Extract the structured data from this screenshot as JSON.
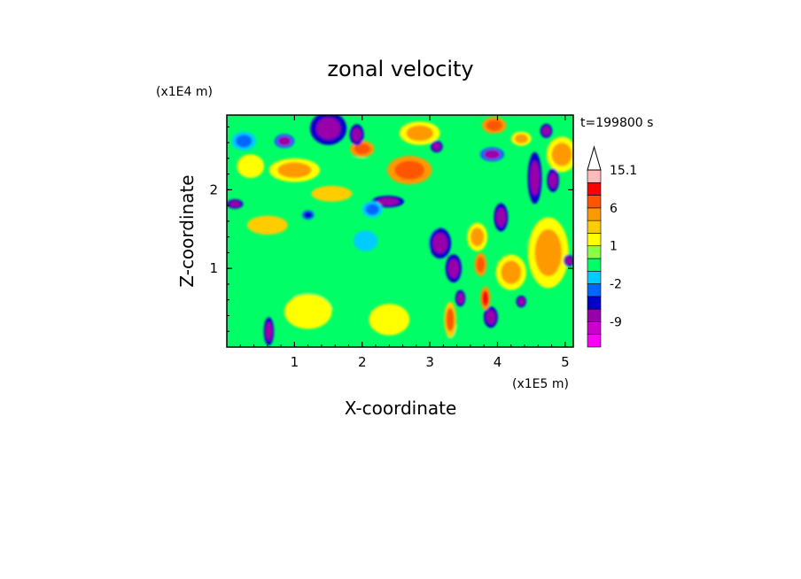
{
  "chart_data": {
    "type": "heatmap",
    "title": "zonal velocity",
    "time_label": "t=199800 s",
    "xlabel": "X-coordinate",
    "ylabel": "Z-coordinate",
    "x_unit": "(x1E5 m)",
    "y_unit": "(x1E4 m)",
    "xlim": [
      0,
      5.12
    ],
    "ylim": [
      0,
      2.95
    ],
    "xticks": [
      1,
      2,
      3,
      4,
      5
    ],
    "yticks": [
      1,
      2
    ],
    "colorbar": {
      "tick_labels": [
        "15.1",
        "6",
        "1",
        "-2",
        "-9"
      ],
      "tick_values": [
        15.1,
        6,
        1,
        -2,
        -9
      ],
      "levels": [
        -16,
        -12,
        -9,
        -6,
        -3,
        -2,
        -1,
        0,
        1,
        2,
        3,
        6,
        9,
        12,
        15.1
      ],
      "colors": [
        "#ff00ff",
        "#cc00cc",
        "#9900aa",
        "#0000cc",
        "#0066ff",
        "#00ccff",
        "#00ff66",
        "#88ff44",
        "#ffff00",
        "#ffcc00",
        "#ff9900",
        "#ff5500",
        "#ff0000",
        "#ffbbbb"
      ],
      "extend": "max"
    },
    "grid": false,
    "blobs": [
      {
        "x": 1.5,
        "z": 2.78,
        "rx": 0.18,
        "rz": 0.14,
        "v": -9
      },
      {
        "x": 1.92,
        "z": 2.7,
        "rx": 0.07,
        "rz": 0.09,
        "v": -8
      },
      {
        "x": 0.85,
        "z": 2.62,
        "rx": 0.1,
        "rz": 0.06,
        "v": -7
      },
      {
        "x": 0.12,
        "z": 1.82,
        "rx": 0.08,
        "rz": 0.04,
        "v": -8
      },
      {
        "x": 1.2,
        "z": 1.68,
        "rx": 0.06,
        "rz": 0.04,
        "v": -6
      },
      {
        "x": 2.15,
        "z": 1.75,
        "rx": 0.1,
        "rz": 0.07,
        "v": -3
      },
      {
        "x": 2.38,
        "z": 1.85,
        "rx": 0.16,
        "rz": 0.05,
        "v": -9
      },
      {
        "x": 3.15,
        "z": 1.32,
        "rx": 0.11,
        "rz": 0.13,
        "v": -9
      },
      {
        "x": 3.35,
        "z": 1.0,
        "rx": 0.08,
        "rz": 0.12,
        "v": -9
      },
      {
        "x": 3.45,
        "z": 0.62,
        "rx": 0.05,
        "rz": 0.07,
        "v": -9
      },
      {
        "x": 3.9,
        "z": 0.38,
        "rx": 0.07,
        "rz": 0.09,
        "v": -9
      },
      {
        "x": 4.05,
        "z": 1.65,
        "rx": 0.07,
        "rz": 0.12,
        "v": -9
      },
      {
        "x": 4.55,
        "z": 2.15,
        "rx": 0.07,
        "rz": 0.22,
        "v": -9
      },
      {
        "x": 4.82,
        "z": 2.12,
        "rx": 0.06,
        "rz": 0.1,
        "v": -9
      },
      {
        "x": 4.35,
        "z": 0.58,
        "rx": 0.05,
        "rz": 0.05,
        "v": -9
      },
      {
        "x": 5.05,
        "z": 1.1,
        "rx": 0.05,
        "rz": 0.05,
        "v": -9
      },
      {
        "x": 3.92,
        "z": 2.45,
        "rx": 0.12,
        "rz": 0.06,
        "v": -7
      },
      {
        "x": 3.1,
        "z": 2.55,
        "rx": 0.06,
        "rz": 0.05,
        "v": -8
      },
      {
        "x": 4.72,
        "z": 2.75,
        "rx": 0.06,
        "rz": 0.06,
        "v": -8
      },
      {
        "x": 0.62,
        "z": 0.2,
        "rx": 0.05,
        "rz": 0.12,
        "v": -8
      },
      {
        "x": 0.25,
        "z": 2.62,
        "rx": 0.12,
        "rz": 0.08,
        "v": -3
      },
      {
        "x": 2.05,
        "z": 1.35,
        "rx": 0.18,
        "rz": 0.13,
        "v": -2
      },
      {
        "x": 2.55,
        "z": 1.2,
        "rx": 0.05,
        "rz": 0.1,
        "v": -1
      },
      {
        "x": 3.65,
        "z": 2.05,
        "rx": 0.1,
        "rz": 0.1,
        "v": -1
      },
      {
        "x": 4.35,
        "z": 1.35,
        "rx": 0.08,
        "rz": 0.12,
        "v": -1
      },
      {
        "x": 0.45,
        "z": 0.85,
        "rx": 0.35,
        "rz": 0.4,
        "v": -1
      },
      {
        "x": 1.4,
        "z": 0.75,
        "rx": 0.45,
        "rz": 0.3,
        "v": -1
      },
      {
        "x": 2.8,
        "z": 1.5,
        "rx": 0.3,
        "rz": 0.35,
        "v": -1
      },
      {
        "x": 3.55,
        "z": 0.15,
        "rx": 0.3,
        "rz": 0.15,
        "v": -1
      },
      {
        "x": 4.9,
        "z": 0.3,
        "rx": 0.25,
        "rz": 0.25,
        "v": -1
      },
      {
        "x": 1.9,
        "z": 2.3,
        "rx": 0.35,
        "rz": 0.12,
        "v": -1
      },
      {
        "x": 2.7,
        "z": 2.25,
        "rx": 0.22,
        "rz": 0.12,
        "v": 7
      },
      {
        "x": 2.0,
        "z": 2.52,
        "rx": 0.12,
        "rz": 0.07,
        "v": 8
      },
      {
        "x": 3.75,
        "z": 1.05,
        "rx": 0.06,
        "rz": 0.1,
        "v": 8
      },
      {
        "x": 3.7,
        "z": 1.4,
        "rx": 0.1,
        "rz": 0.12,
        "v": 4
      },
      {
        "x": 4.2,
        "z": 0.95,
        "rx": 0.15,
        "rz": 0.15,
        "v": 4
      },
      {
        "x": 3.95,
        "z": 2.82,
        "rx": 0.12,
        "rz": 0.07,
        "v": 7
      },
      {
        "x": 4.35,
        "z": 2.65,
        "rx": 0.1,
        "rz": 0.06,
        "v": 4
      },
      {
        "x": 0.6,
        "z": 1.55,
        "rx": 0.3,
        "rz": 0.12,
        "v": 2
      },
      {
        "x": 1.0,
        "z": 2.25,
        "rx": 0.25,
        "rz": 0.1,
        "v": 3
      },
      {
        "x": 1.2,
        "z": 0.45,
        "rx": 0.35,
        "rz": 0.22,
        "v": 1.5
      },
      {
        "x": 2.4,
        "z": 0.35,
        "rx": 0.3,
        "rz": 0.2,
        "v": 1.5
      },
      {
        "x": 0.35,
        "z": 2.3,
        "rx": 0.2,
        "rz": 0.15,
        "v": 1.5
      },
      {
        "x": 4.75,
        "z": 1.2,
        "rx": 0.2,
        "rz": 0.3,
        "v": 4
      },
      {
        "x": 4.95,
        "z": 2.45,
        "rx": 0.15,
        "rz": 0.15,
        "v": 3
      },
      {
        "x": 2.85,
        "z": 2.72,
        "rx": 0.2,
        "rz": 0.1,
        "v": 3
      },
      {
        "x": 1.55,
        "z": 1.95,
        "rx": 0.3,
        "rz": 0.1,
        "v": 2
      },
      {
        "x": 3.3,
        "z": 0.35,
        "rx": 0.06,
        "rz": 0.15,
        "v": 6
      },
      {
        "x": 3.82,
        "z": 0.62,
        "rx": 0.05,
        "rz": 0.1,
        "v": 10
      }
    ]
  }
}
